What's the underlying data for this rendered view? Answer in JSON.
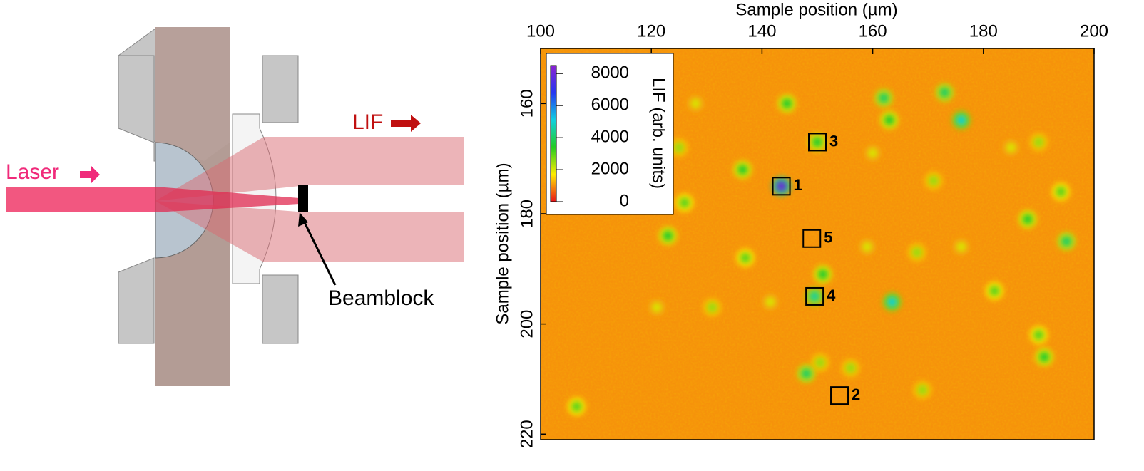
{
  "diagram": {
    "laser_label": "Laser",
    "lif_label": "LIF",
    "beamblock_label": "Beamblock"
  },
  "chart_data": {
    "type": "heatmap",
    "xlabel": "Sample position (µm)",
    "ylabel": "Sample position (µm)",
    "xlim": [
      100,
      200
    ],
    "xticks": [
      100,
      120,
      140,
      160,
      180,
      200
    ],
    "ylim": [
      150,
      221
    ],
    "yticks": [
      160,
      180,
      200,
      220
    ],
    "y_inverted": true,
    "colorbar_label": "LIF (arb. units)",
    "clim": [
      0,
      8500
    ],
    "cticks": [
      0,
      2000,
      4000,
      6000,
      8000
    ],
    "colormap": [
      "#e8141a",
      "#ffec00",
      "#22cc22",
      "#10d0e0",
      "#2436f0",
      "#8a22d0"
    ],
    "background": 1000,
    "x": [
      143.5,
      136.5,
      126,
      123,
      137,
      144.5,
      150,
      151,
      149.5,
      162,
      163,
      173,
      176,
      171,
      160,
      159,
      168,
      176,
      182,
      188,
      194,
      195,
      185,
      190,
      163.5,
      141.5,
      131,
      121,
      150.5,
      156,
      148,
      169,
      191,
      190,
      106.5,
      125,
      128
    ],
    "y": [
      175,
      172,
      178,
      184,
      188,
      160,
      167,
      191,
      195,
      159,
      163,
      158,
      163,
      174,
      169,
      186,
      187,
      186,
      194,
      181,
      176,
      185,
      168,
      167,
      196,
      196,
      197,
      197,
      207,
      208,
      209,
      212,
      206,
      202,
      215,
      168,
      160
    ],
    "values": [
      8000,
      3500,
      3000,
      3500,
      3000,
      3500,
      3500,
      3500,
      4500,
      4000,
      3500,
      4000,
      5000,
      2500,
      2000,
      2000,
      2500,
      2000,
      3000,
      3500,
      3000,
      4000,
      2000,
      2500,
      5000,
      2000,
      2500,
      2000,
      2500,
      2500,
      4000,
      2500,
      3500,
      3000,
      3000,
      2500,
      2000
    ],
    "markers": [
      {
        "label": "1",
        "x": 143.5,
        "y": 175
      },
      {
        "label": "2",
        "x": 154,
        "y": 213
      },
      {
        "label": "3",
        "x": 150,
        "y": 167
      },
      {
        "label": "4",
        "x": 149.5,
        "y": 195
      },
      {
        "label": "5",
        "x": 149,
        "y": 184.5
      }
    ]
  }
}
